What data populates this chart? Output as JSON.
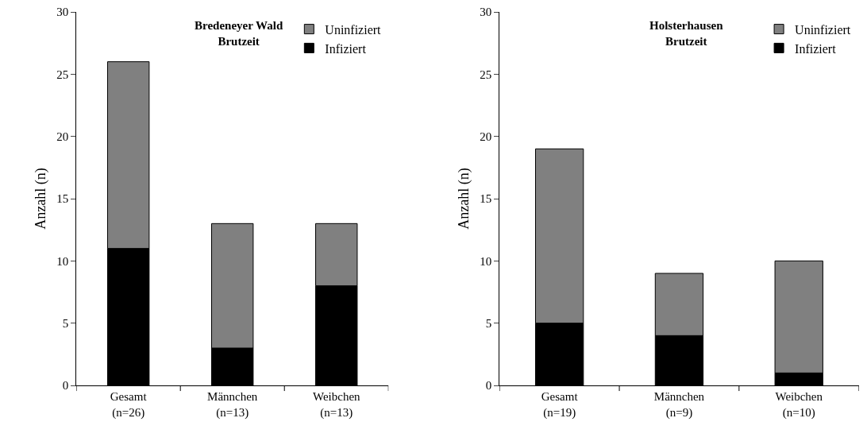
{
  "chart_data": [
    {
      "type": "bar",
      "title": "Bredeneyer Wald\nBrutzeit",
      "ylabel": "Anzahl (n)",
      "categories": [
        "Gesamt\n(n=26)",
        "Männchen\n(n=13)",
        "Weibchen\n(n=13)"
      ],
      "stacked": true,
      "ylim": [
        0,
        30
      ],
      "yticks": [
        0,
        5,
        10,
        15,
        20,
        25,
        30
      ],
      "legend": "top right",
      "series": [
        {
          "name": "Infiziert",
          "color": "#000000",
          "values": [
            11,
            3,
            8
          ]
        },
        {
          "name": "Uninfiziert",
          "color": "#808080",
          "values": [
            15,
            10,
            5
          ]
        }
      ]
    },
    {
      "type": "bar",
      "title": "Holsterhausen\nBrutzeit",
      "ylabel": "Anzahl (n)",
      "categories": [
        "Gesamt\n(n=19)",
        "Männchen\n(n=9)",
        "Weibchen\n(n=10)"
      ],
      "stacked": true,
      "ylim": [
        0,
        30
      ],
      "yticks": [
        0,
        5,
        10,
        15,
        20,
        25,
        30
      ],
      "legend": "top right",
      "series": [
        {
          "name": "Infiziert",
          "color": "#000000",
          "values": [
            5,
            4,
            1
          ]
        },
        {
          "name": "Uninfiziert",
          "color": "#808080",
          "values": [
            14,
            5,
            9
          ]
        }
      ]
    }
  ]
}
